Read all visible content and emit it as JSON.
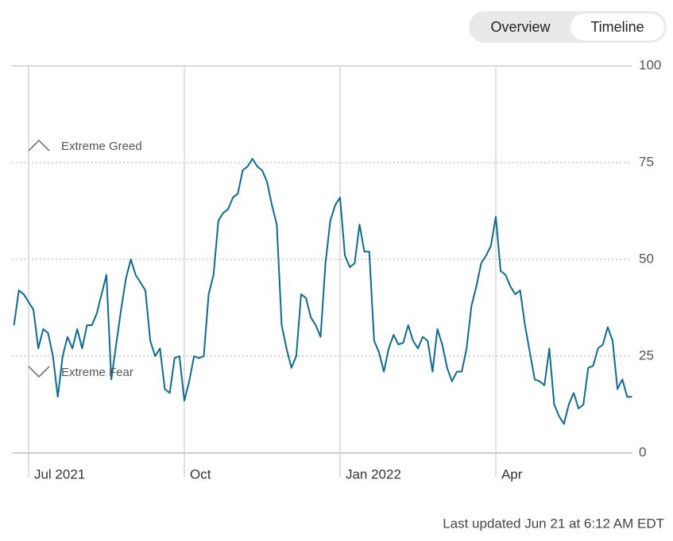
{
  "tabs": [
    "Overview",
    "Timeline"
  ],
  "footer": "Last updated Jun 21 at 6:12 AM EDT",
  "chart_data": {
    "type": "line",
    "annotations": [
      "Extreme Greed",
      "Extreme Fear"
    ],
    "color": "#0e6b8f",
    "categories": [
      null,
      null,
      null,
      "Jul 2021",
      null,
      null,
      null,
      null,
      null,
      null,
      null,
      null,
      null,
      null,
      null,
      null,
      null,
      null,
      null,
      null,
      null,
      null,
      null,
      null,
      null,
      null,
      null,
      null,
      null,
      null,
      null,
      null,
      null,
      null,
      null,
      "Oct",
      null,
      null,
      null,
      null,
      null,
      null,
      null,
      null,
      null,
      null,
      null,
      null,
      null,
      null,
      null,
      null,
      null,
      null,
      null,
      null,
      null,
      null,
      null,
      null,
      null,
      null,
      null,
      null,
      null,
      null,
      null,
      "Jan 2022",
      null,
      null,
      null,
      null,
      null,
      null,
      null,
      null,
      null,
      null,
      null,
      null,
      null,
      null,
      null,
      null,
      null,
      null,
      null,
      null,
      null,
      null,
      null,
      null,
      null,
      null,
      null,
      null,
      null,
      null,
      null,
      "Apr",
      null,
      null,
      null,
      null,
      null,
      null,
      null,
      null,
      null,
      null,
      null,
      null,
      null,
      null,
      null,
      null,
      null,
      null,
      null,
      null,
      null,
      null,
      null,
      null,
      null,
      null,
      null,
      null
    ],
    "values": [
      33,
      42,
      41,
      39,
      37,
      27,
      32,
      31,
      25,
      14.5,
      25,
      30,
      27,
      32,
      27,
      33,
      33,
      36,
      41,
      46,
      19,
      28,
      37,
      45,
      50,
      46,
      44,
      42,
      29,
      25,
      27,
      16.5,
      15.5,
      24.5,
      25,
      13.5,
      18.5,
      25,
      24.5,
      25,
      41,
      46,
      60,
      62,
      63,
      66,
      67,
      73,
      74,
      76,
      74,
      73,
      70,
      64,
      59,
      33,
      27,
      22,
      25,
      41,
      40,
      35,
      33,
      30,
      49,
      60,
      64,
      66,
      51,
      48,
      49,
      59,
      52,
      52,
      29,
      26,
      21,
      27,
      30.5,
      28,
      28.5,
      33,
      29,
      27,
      30,
      29,
      21,
      32,
      28,
      22,
      18.5,
      21,
      21,
      27,
      38,
      43,
      49,
      51,
      53.5,
      61,
      47,
      46,
      43,
      41,
      42,
      33,
      26,
      19,
      18.5,
      17.5,
      27,
      12.5,
      9.5,
      7.5,
      12.5,
      15.5,
      11.5,
      12.5,
      22,
      22.5,
      27,
      28,
      32.5,
      29,
      16.5,
      19,
      14.5,
      14.5
    ],
    "ylim": [
      0,
      100
    ],
    "yticks": [
      0,
      25,
      50,
      75,
      100
    ],
    "grid": true
  }
}
